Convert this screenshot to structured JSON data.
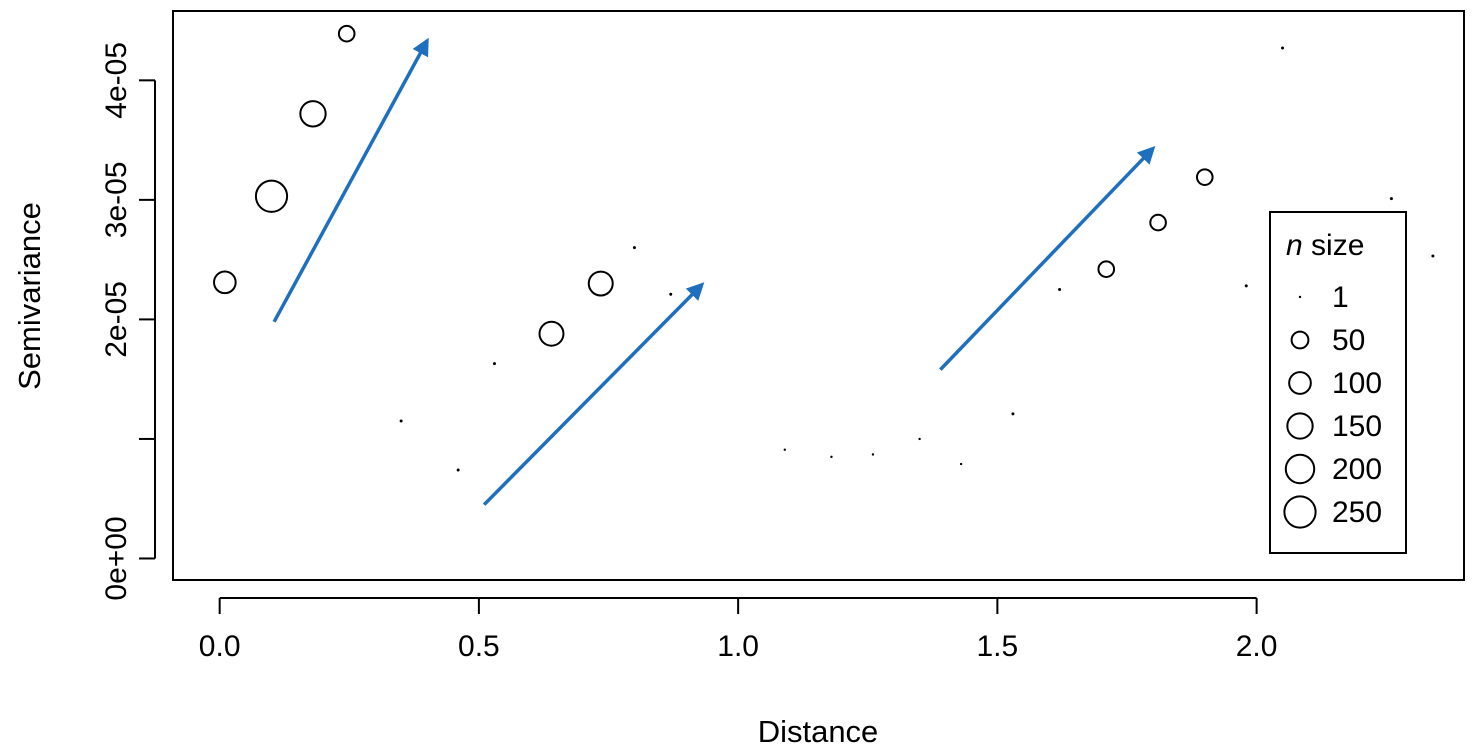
{
  "chart_data": {
    "type": "scatter",
    "title": "",
    "xlabel": "Distance",
    "ylabel": "Semivariance",
    "xlim": [
      -0.09,
      2.4
    ],
    "ylim": [
      -1.8e-06,
      4.58e-05
    ],
    "x_ticks": [
      0.0,
      0.5,
      1.0,
      1.5,
      2.0
    ],
    "x_tick_labels": [
      "0.0",
      "0.5",
      "1.0",
      "1.5",
      "2.0"
    ],
    "y_ticks": [
      0.0,
      1e-05,
      2e-05,
      3e-05,
      4e-05
    ],
    "y_tick_labels": [
      "0e+00",
      "",
      "2e-05",
      "3e-05",
      "4e-05"
    ],
    "grid": false,
    "legend": {
      "title_italic": "n",
      "title_rest": " size",
      "position": "right",
      "entries": [
        {
          "label": "1",
          "n": 1
        },
        {
          "label": "50",
          "n": 50
        },
        {
          "label": "100",
          "n": 100
        },
        {
          "label": "150",
          "n": 150
        },
        {
          "label": "200",
          "n": 200
        },
        {
          "label": "250",
          "n": 250
        }
      ]
    },
    "points": [
      {
        "x": 0.01,
        "y": 2.31e-05,
        "n": 100
      },
      {
        "x": 0.1,
        "y": 3.03e-05,
        "n": 250
      },
      {
        "x": 0.18,
        "y": 3.72e-05,
        "n": 150
      },
      {
        "x": 0.245,
        "y": 4.39e-05,
        "n": 40
      },
      {
        "x": 0.35,
        "y": 1.15e-05,
        "n": 2
      },
      {
        "x": 0.46,
        "y": 7.4e-06,
        "n": 2
      },
      {
        "x": 0.53,
        "y": 1.63e-05,
        "n": 2
      },
      {
        "x": 0.64,
        "y": 1.88e-05,
        "n": 130
      },
      {
        "x": 0.735,
        "y": 2.3e-05,
        "n": 130
      },
      {
        "x": 0.8,
        "y": 2.6e-05,
        "n": 2
      },
      {
        "x": 0.87,
        "y": 2.21e-05,
        "n": 2
      },
      {
        "x": 1.09,
        "y": 9.1e-06,
        "n": 1
      },
      {
        "x": 1.18,
        "y": 8.5e-06,
        "n": 1
      },
      {
        "x": 1.26,
        "y": 8.7e-06,
        "n": 1
      },
      {
        "x": 1.35,
        "y": 1e-05,
        "n": 1
      },
      {
        "x": 1.43,
        "y": 7.9e-06,
        "n": 1
      },
      {
        "x": 1.53,
        "y": 1.21e-05,
        "n": 2
      },
      {
        "x": 1.62,
        "y": 2.25e-05,
        "n": 2
      },
      {
        "x": 1.71,
        "y": 2.42e-05,
        "n": 40
      },
      {
        "x": 1.81,
        "y": 2.81e-05,
        "n": 40
      },
      {
        "x": 1.9,
        "y": 3.19e-05,
        "n": 40
      },
      {
        "x": 1.98,
        "y": 2.28e-05,
        "n": 2
      },
      {
        "x": 2.05,
        "y": 4.27e-05,
        "n": 2
      },
      {
        "x": 2.26,
        "y": 3.01e-05,
        "n": 2
      },
      {
        "x": 2.34,
        "y": 2.53e-05,
        "n": 2
      }
    ],
    "annotations": [
      {
        "type": "arrow",
        "color": "#1f6fbf",
        "from": [
          0.105,
          1.98e-05
        ],
        "to": [
          0.4,
          4.33e-05
        ]
      },
      {
        "type": "arrow",
        "color": "#1f6fbf",
        "from": [
          0.51,
          4.5e-06
        ],
        "to": [
          0.93,
          2.29e-05
        ]
      },
      {
        "type": "arrow",
        "color": "#1f6fbf",
        "from": [
          1.39,
          1.58e-05
        ],
        "to": [
          1.8,
          3.43e-05
        ]
      }
    ]
  }
}
